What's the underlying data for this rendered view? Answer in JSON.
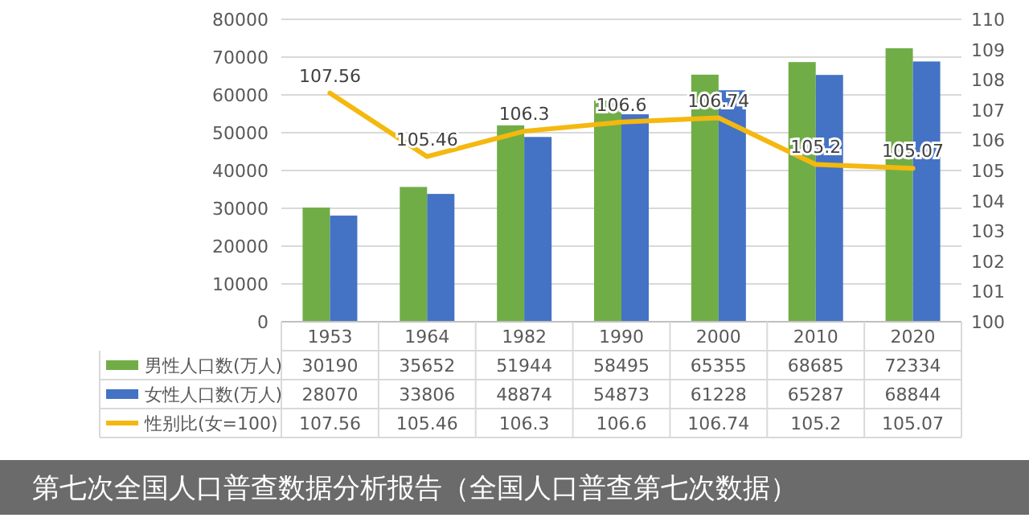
{
  "chart_data": {
    "type": "bar",
    "categories": [
      "1953",
      "1964",
      "1982",
      "1990",
      "2000",
      "2010",
      "2020"
    ],
    "series": [
      {
        "name": "男性人口数(万人)",
        "color": "#70ad47",
        "values": [
          30190,
          35652,
          51944,
          58495,
          65355,
          68685,
          72334
        ]
      },
      {
        "name": "女性人口数(万人)",
        "color": "#4472c4",
        "values": [
          28070,
          33806,
          48874,
          54873,
          61228,
          65287,
          68844
        ]
      },
      {
        "name": "性别比(女=100)",
        "color": "#f4b80f",
        "type": "line",
        "axis": "y2",
        "values": [
          107.56,
          105.46,
          106.3,
          106.6,
          106.74,
          105.2,
          105.07
        ],
        "value_labels": [
          "107.56",
          "105.46",
          "106.3",
          "106.6",
          "106.74",
          "105.2",
          "105.07"
        ]
      }
    ],
    "ylim": [
      0,
      80000
    ],
    "yticks": [
      0,
      10000,
      20000,
      30000,
      40000,
      50000,
      60000,
      70000,
      80000
    ],
    "y2lim": [
      100,
      110
    ],
    "y2ticks": [
      100,
      101,
      102,
      103,
      104,
      105,
      106,
      107,
      108,
      109,
      110
    ],
    "grid": "y",
    "legend": "bottom",
    "data_labels": true,
    "marker": "none",
    "annotations": [
      "第七次全国人口普查数据分析报告（全国人口普查第七次数据）"
    ]
  }
}
